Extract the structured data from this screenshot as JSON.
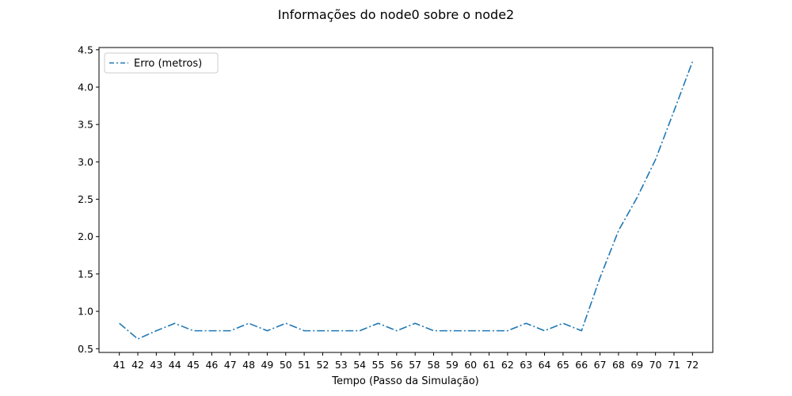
{
  "chart_data": {
    "type": "line",
    "title": "Informações do node0 sobre o node2",
    "xlabel": "Tempo (Passo da Simulação)",
    "ylabel": "",
    "x": [
      41,
      42,
      43,
      44,
      45,
      46,
      47,
      48,
      49,
      50,
      51,
      52,
      53,
      54,
      55,
      56,
      57,
      58,
      59,
      60,
      61,
      62,
      63,
      64,
      65,
      66,
      67,
      68,
      69,
      70,
      71,
      72
    ],
    "series": [
      {
        "name": "Erro (metros)",
        "color": "#1f77b4",
        "linestyle": "dashdot",
        "values": [
          0.84,
          0.63,
          0.74,
          0.84,
          0.74,
          0.74,
          0.74,
          0.84,
          0.74,
          0.84,
          0.74,
          0.74,
          0.74,
          0.74,
          0.84,
          0.74,
          0.84,
          0.74,
          0.74,
          0.74,
          0.74,
          0.74,
          0.84,
          0.74,
          0.84,
          0.74,
          1.45,
          2.08,
          2.52,
          3.03,
          3.68,
          4.34
        ]
      }
    ],
    "xlim": [
      39.9,
      73.1
    ],
    "ylim": [
      0.45,
      4.53
    ],
    "yticks": [
      0.5,
      1.0,
      1.5,
      2.0,
      2.5,
      3.0,
      3.5,
      4.0,
      4.5
    ],
    "ytick_labels": [
      "0.5",
      "1.0",
      "1.5",
      "2.0",
      "2.5",
      "3.0",
      "3.5",
      "4.0",
      "4.5"
    ],
    "xtick_labels": [
      "41",
      "42",
      "43",
      "44",
      "45",
      "46",
      "47",
      "48",
      "49",
      "50",
      "51",
      "52",
      "53",
      "54",
      "55",
      "56",
      "57",
      "58",
      "59",
      "60",
      "61",
      "62",
      "63",
      "64",
      "65",
      "66",
      "67",
      "68",
      "69",
      "70",
      "71",
      "72"
    ],
    "grid": false,
    "legend_position": "upper-left"
  }
}
